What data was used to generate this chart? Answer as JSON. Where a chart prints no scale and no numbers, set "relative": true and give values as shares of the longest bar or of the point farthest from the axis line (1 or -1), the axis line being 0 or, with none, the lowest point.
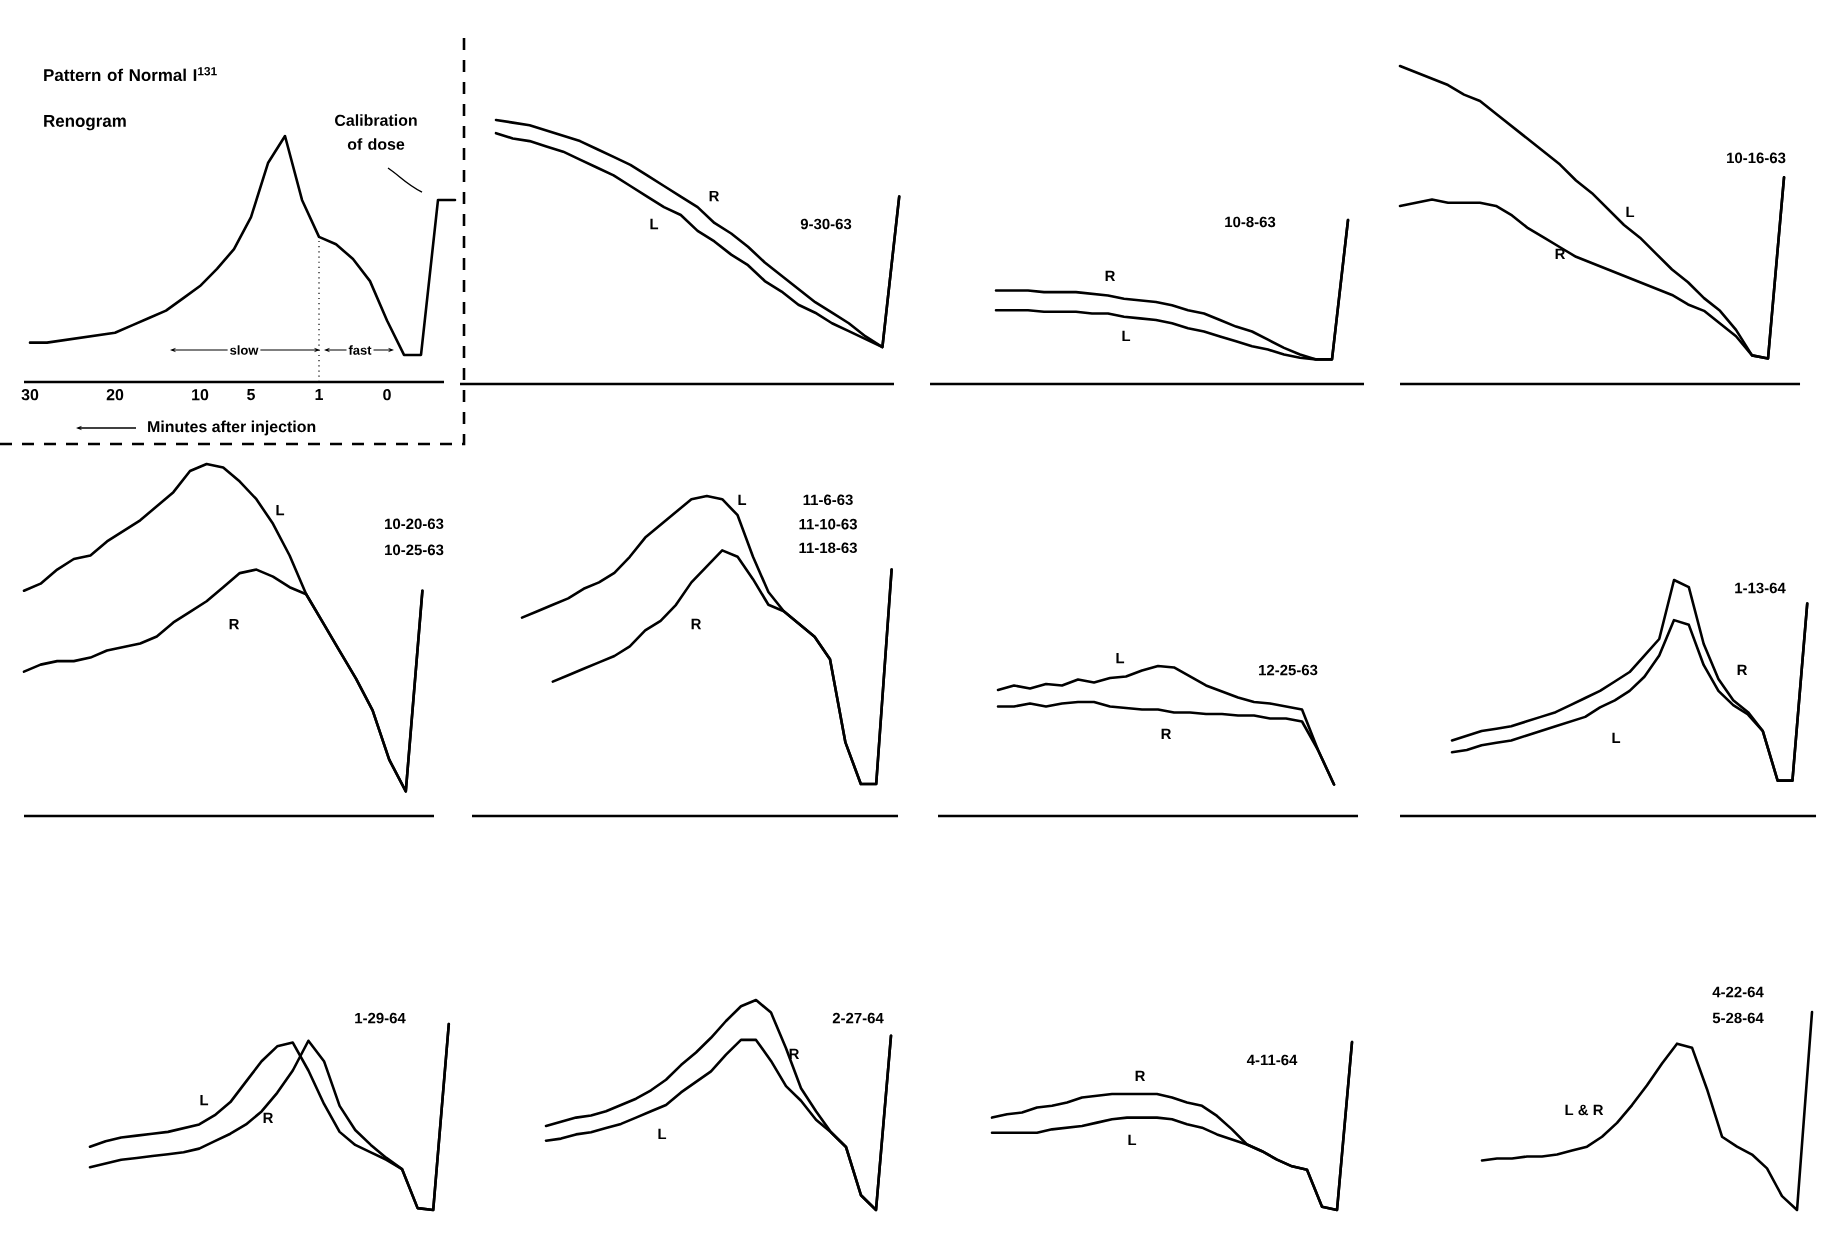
{
  "chart_data": [
    {
      "type": "line",
      "relative": true,
      "title": "Pattern of Normal I$^{131}$ Renogram",
      "xlabel": "Minutes after injection",
      "annotations": [
        "slow",
        "fast",
        "Calibration of dose"
      ],
      "ref_lines": [
        {
          "axis": "x",
          "value": "1",
          "line_style": "dotted"
        }
      ],
      "categories": [
        "30",
        null,
        null,
        null,
        null,
        "20",
        null,
        null,
        null,
        null,
        "10",
        null,
        null,
        "5",
        null,
        null,
        null,
        "1",
        null,
        null,
        null,
        "0",
        null,
        null,
        null,
        null
      ],
      "series": [
        {
          "color": "#000000",
          "values": [
            0.16,
            0.16,
            0.17,
            0.18,
            0.19,
            0.2,
            0.23,
            0.26,
            0.29,
            0.34,
            0.39,
            0.46,
            0.54,
            0.67,
            0.89,
            1,
            0.74,
            0.59,
            0.56,
            0.5,
            0.41,
            0.25,
            0.11,
            0.11,
            0.74,
            0.74
          ]
        }
      ]
    },
    {
      "type": "line",
      "relative": true,
      "title": "9-30-63",
      "categories": [
        null,
        null,
        null,
        null,
        null,
        null,
        null,
        null,
        null,
        null,
        null,
        null,
        null,
        null,
        null,
        null,
        null,
        null,
        null,
        null,
        null,
        null,
        null,
        null,
        null
      ],
      "series": [
        {
          "name": "L",
          "color": "#000000",
          "values": [
            0.95,
            0.93,
            0.92,
            0.9,
            0.88,
            0.85,
            0.82,
            0.79,
            0.75,
            0.71,
            0.67,
            0.64,
            0.58,
            0.54,
            0.49,
            0.45,
            0.39,
            0.35,
            0.3,
            0.27,
            0.23,
            0.2,
            0.17,
            0.14,
            0.71
          ]
        },
        {
          "name": "R",
          "color": "#000000",
          "values": [
            1,
            0.99,
            0.98,
            0.96,
            0.94,
            0.92,
            0.89,
            0.86,
            0.83,
            0.79,
            0.75,
            0.71,
            0.67,
            0.61,
            0.57,
            0.52,
            0.46,
            0.41,
            0.36,
            0.31,
            0.27,
            0.23,
            0.18,
            0.14,
            0.71
          ]
        }
      ]
    },
    {
      "type": "line",
      "relative": true,
      "title": "10-8-63",
      "categories": [
        null,
        null,
        null,
        null,
        null,
        null,
        null,
        null,
        null,
        null,
        null,
        null,
        null,
        null,
        null,
        null,
        null,
        null,
        null,
        null,
        null,
        null,
        null
      ],
      "series": [
        {
          "name": "R",
          "color": "#000000",
          "values": [
            0.57,
            0.57,
            0.57,
            0.56,
            0.56,
            0.56,
            0.55,
            0.54,
            0.52,
            0.51,
            0.5,
            0.48,
            0.45,
            0.43,
            0.39,
            0.35,
            0.32,
            0.27,
            0.22,
            0.18,
            0.15,
            0.15,
            1
          ]
        },
        {
          "name": "L",
          "color": "#000000",
          "values": [
            0.45,
            0.45,
            0.45,
            0.44,
            0.44,
            0.44,
            0.43,
            0.43,
            0.41,
            0.4,
            0.39,
            0.37,
            0.34,
            0.32,
            0.29,
            0.26,
            0.23,
            0.21,
            0.18,
            0.16,
            0.15,
            0.15,
            1
          ]
        }
      ]
    },
    {
      "type": "line",
      "relative": true,
      "title": "10-16-63",
      "categories": [
        null,
        null,
        null,
        null,
        null,
        null,
        null,
        null,
        null,
        null,
        null,
        null,
        null,
        null,
        null,
        null,
        null,
        null,
        null,
        null,
        null,
        null,
        null,
        null,
        null
      ],
      "series": [
        {
          "name": "L",
          "color": "#000000",
          "values": [
            1,
            0.98,
            0.96,
            0.94,
            0.91,
            0.89,
            0.85,
            0.81,
            0.77,
            0.73,
            0.69,
            0.64,
            0.6,
            0.55,
            0.5,
            0.46,
            0.41,
            0.36,
            0.32,
            0.27,
            0.23,
            0.17,
            0.09,
            0.08,
            0.65
          ]
        },
        {
          "name": "R",
          "color": "#000000",
          "values": [
            0.56,
            0.57,
            0.58,
            0.57,
            0.57,
            0.57,
            0.56,
            0.53,
            0.49,
            0.46,
            0.43,
            0.4,
            0.38,
            0.36,
            0.34,
            0.32,
            0.3,
            0.28,
            0.25,
            0.23,
            0.19,
            0.15,
            0.09,
            0.08,
            0.65
          ]
        }
      ]
    },
    {
      "type": "line",
      "relative": true,
      "title": "10-20-63",
      "subtitle": "10-25-63",
      "categories": [
        null,
        null,
        null,
        null,
        null,
        null,
        null,
        null,
        null,
        null,
        null,
        null,
        null,
        null,
        null,
        null,
        null,
        null,
        null,
        null,
        null,
        null,
        null,
        null,
        null
      ],
      "series": [
        {
          "name": "L",
          "color": "#000000",
          "values": [
            0.64,
            0.66,
            0.7,
            0.73,
            0.74,
            0.78,
            0.81,
            0.84,
            0.88,
            0.92,
            0.98,
            1,
            0.99,
            0.95,
            0.9,
            0.83,
            0.74,
            0.63,
            0.55,
            0.47,
            0.39,
            0.3,
            0.16,
            0.07,
            0.64
          ]
        },
        {
          "name": "R",
          "color": "#000000",
          "values": [
            0.41,
            0.43,
            0.44,
            0.44,
            0.45,
            0.47,
            0.48,
            0.49,
            0.51,
            0.55,
            0.58,
            0.61,
            0.65,
            0.69,
            0.7,
            0.68,
            0.65,
            0.63,
            0.55,
            0.47,
            0.39,
            0.3,
            0.16,
            0.07,
            0.64
          ]
        }
      ]
    },
    {
      "type": "line",
      "relative": true,
      "title": "11-6-63",
      "subtitle": "11-10-63",
      "annotations": [
        "11-18-63"
      ],
      "categories": [
        null,
        null,
        null,
        null,
        null,
        null,
        null,
        null,
        null,
        null,
        null,
        null,
        null,
        null,
        null,
        null,
        null,
        null,
        null,
        null,
        null,
        null,
        null,
        null,
        null
      ],
      "series": [
        {
          "name": "L",
          "color": "#000000",
          "values": [
            0.62,
            0.64,
            0.66,
            0.68,
            0.71,
            0.73,
            0.76,
            0.81,
            0.87,
            0.91,
            0.95,
            0.99,
            1,
            0.99,
            0.94,
            0.81,
            0.7,
            0.64,
            0.6,
            0.56,
            0.49,
            0.23,
            0.1,
            0.1,
            0.77
          ]
        },
        {
          "name": "R",
          "color": "#000000",
          "values": [
            null,
            null,
            0.42,
            0.44,
            0.46,
            0.48,
            0.5,
            0.53,
            0.58,
            0.61,
            0.66,
            0.73,
            0.78,
            0.83,
            0.81,
            0.74,
            0.66,
            0.64,
            0.6,
            0.56,
            0.49,
            0.23,
            0.1,
            0.1,
            0.77
          ]
        }
      ]
    },
    {
      "type": "line",
      "relative": true,
      "title": "12-25-63",
      "categories": [
        null,
        null,
        null,
        null,
        null,
        null,
        null,
        null,
        null,
        null,
        null,
        null,
        null,
        null,
        null,
        null,
        null,
        null,
        null,
        null,
        null,
        null
      ],
      "series": [
        {
          "name": "L",
          "color": "#000000",
          "values": [
            0.84,
            0.87,
            0.85,
            0.88,
            0.87,
            0.91,
            0.89,
            0.92,
            0.93,
            0.97,
            1,
            0.99,
            0.93,
            0.87,
            0.83,
            0.79,
            0.76,
            0.75,
            0.73,
            0.71,
            0.44,
            0.21
          ]
        },
        {
          "name": "R",
          "color": "#000000",
          "values": [
            0.73,
            0.73,
            0.75,
            0.73,
            0.75,
            0.76,
            0.76,
            0.73,
            0.72,
            0.71,
            0.71,
            0.69,
            0.69,
            0.68,
            0.68,
            0.67,
            0.67,
            0.65,
            0.65,
            0.63,
            0.44,
            0.21
          ]
        }
      ]
    },
    {
      "type": "line",
      "relative": true,
      "title": "1-13-64",
      "categories": [
        null,
        null,
        null,
        null,
        null,
        null,
        null,
        null,
        null,
        null,
        null,
        null,
        null,
        null,
        null,
        null,
        null,
        null,
        null,
        null,
        null,
        null,
        null,
        null,
        null
      ],
      "series": [
        {
          "name": "R",
          "color": "#000000",
          "values": [
            0.32,
            0.34,
            0.36,
            0.37,
            0.38,
            0.4,
            0.42,
            0.44,
            0.47,
            0.5,
            0.53,
            0.57,
            0.61,
            0.68,
            0.75,
            1,
            0.97,
            0.73,
            0.58,
            0.49,
            0.44,
            0.36,
            0.15,
            0.15,
            0.9
          ]
        },
        {
          "name": "L",
          "color": "#000000",
          "values": [
            0.27,
            0.28,
            0.3,
            0.31,
            0.32,
            0.34,
            0.36,
            0.38,
            0.4,
            0.42,
            0.46,
            0.49,
            0.53,
            0.59,
            0.68,
            0.83,
            0.81,
            0.64,
            0.53,
            0.47,
            0.43,
            0.36,
            0.15,
            0.15,
            0.9
          ]
        }
      ]
    },
    {
      "type": "line",
      "relative": true,
      "title": "1-29-64",
      "categories": [
        null,
        null,
        null,
        null,
        null,
        null,
        null,
        null,
        null,
        null,
        null,
        null,
        null,
        null,
        null,
        null,
        null,
        null,
        null,
        null,
        null,
        null,
        null,
        null
      ],
      "series": [
        {
          "name": "L",
          "color": "#000000",
          "values": [
            0.34,
            0.37,
            0.39,
            0.4,
            0.41,
            0.42,
            0.44,
            0.46,
            0.51,
            0.58,
            0.69,
            0.8,
            0.88,
            0.9,
            0.75,
            0.57,
            0.42,
            0.35,
            0.31,
            0.27,
            0.22,
            0.01,
            0,
            1
          ]
        },
        {
          "name": "R",
          "color": "#000000",
          "values": [
            0.23,
            0.25,
            0.27,
            0.28,
            0.29,
            0.3,
            0.31,
            0.33,
            0.37,
            0.41,
            0.46,
            0.53,
            0.63,
            0.75,
            0.91,
            0.8,
            0.56,
            0.43,
            0.35,
            0.28,
            0.22,
            0.01,
            0,
            1
          ]
        }
      ]
    },
    {
      "type": "line",
      "relative": true,
      "title": "2-27-64",
      "categories": [
        null,
        null,
        null,
        null,
        null,
        null,
        null,
        null,
        null,
        null,
        null,
        null,
        null,
        null,
        null,
        null,
        null,
        null,
        null,
        null,
        null,
        null,
        null,
        null
      ],
      "series": [
        {
          "name": "R",
          "color": "#000000",
          "values": [
            0.4,
            0.42,
            0.44,
            0.45,
            0.47,
            0.5,
            0.53,
            0.57,
            0.62,
            0.69,
            0.75,
            0.82,
            0.9,
            0.97,
            1,
            0.94,
            0.77,
            0.58,
            0.47,
            0.37,
            0.3,
            0.07,
            0,
            0.83
          ]
        },
        {
          "name": "L",
          "color": "#000000",
          "values": [
            0.33,
            0.34,
            0.36,
            0.37,
            0.39,
            0.41,
            0.44,
            0.47,
            0.5,
            0.56,
            0.61,
            0.66,
            0.74,
            0.81,
            0.81,
            0.71,
            0.59,
            0.52,
            0.43,
            0.37,
            0.3,
            0.07,
            0,
            0.83
          ]
        }
      ]
    },
    {
      "type": "line",
      "relative": true,
      "title": "4-11-64",
      "categories": [
        null,
        null,
        null,
        null,
        null,
        null,
        null,
        null,
        null,
        null,
        null,
        null,
        null,
        null,
        null,
        null,
        null,
        null,
        null,
        null,
        null,
        null,
        null,
        null,
        null
      ],
      "series": [
        {
          "name": "R",
          "color": "#000000",
          "values": [
            0.55,
            0.57,
            0.58,
            0.61,
            0.62,
            0.64,
            0.67,
            0.68,
            0.69,
            0.69,
            0.69,
            0.69,
            0.67,
            0.64,
            0.62,
            0.56,
            0.48,
            0.39,
            0.35,
            0.3,
            0.26,
            0.24,
            0.02,
            0,
            1
          ]
        },
        {
          "name": "L",
          "color": "#000000",
          "values": [
            0.46,
            0.46,
            0.46,
            0.46,
            0.48,
            0.49,
            0.5,
            0.52,
            0.54,
            0.55,
            0.55,
            0.55,
            0.54,
            0.51,
            0.49,
            0.45,
            0.42,
            0.39,
            0.35,
            0.3,
            0.26,
            0.24,
            0.02,
            0,
            1
          ]
        }
      ]
    },
    {
      "type": "line",
      "relative": true,
      "title": "4-22-64",
      "subtitle": "5-28-64",
      "categories": [
        null,
        null,
        null,
        null,
        null,
        null,
        null,
        null,
        null,
        null,
        null,
        null,
        null,
        null,
        null,
        null,
        null,
        null,
        null,
        null,
        null,
        null,
        null
      ],
      "series": [
        {
          "name": "L & R",
          "color": "#000000",
          "values": [
            0.25,
            0.26,
            0.26,
            0.27,
            0.27,
            0.28,
            0.3,
            0.32,
            0.37,
            0.44,
            0.53,
            0.63,
            0.74,
            0.84,
            0.82,
            0.61,
            0.37,
            0.32,
            0.28,
            0.21,
            0.07,
            0,
            1
          ]
        }
      ]
    }
  ]
}
